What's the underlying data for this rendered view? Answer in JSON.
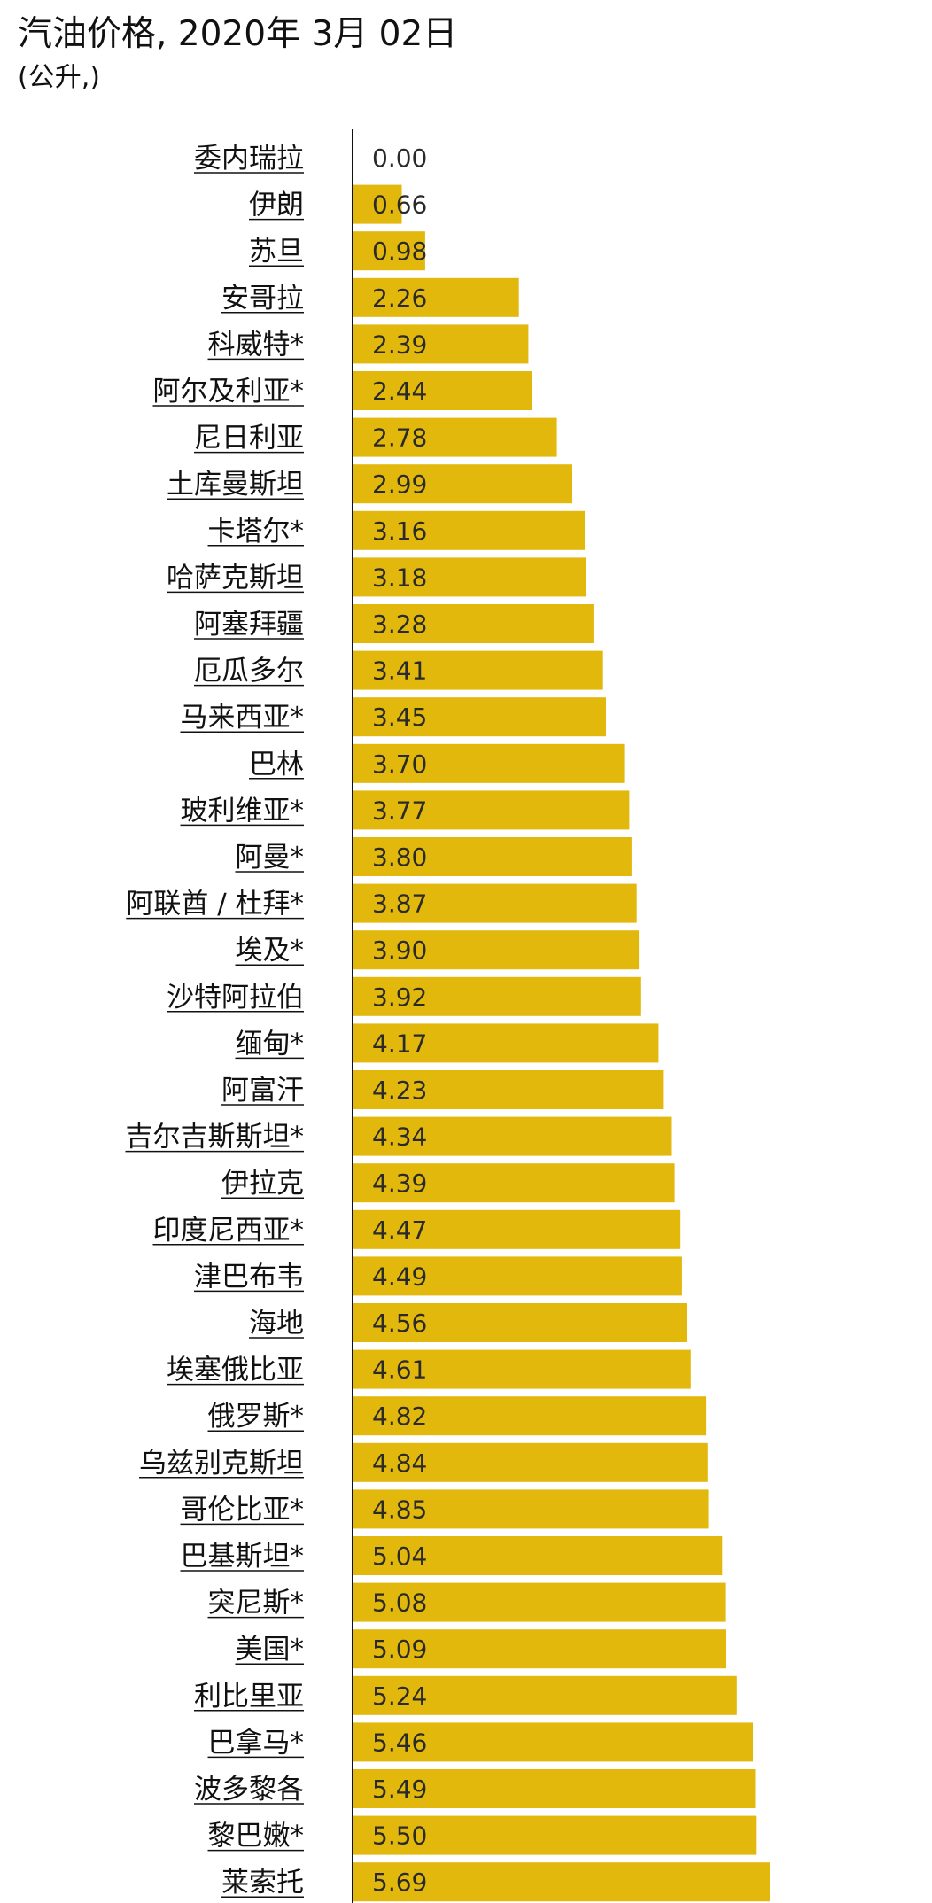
{
  "chart_data": {
    "type": "bar",
    "orientation": "horizontal",
    "title": "汽油价格, 2020年 3月 02日",
    "subtitle": "(公升,)",
    "bar_color": "#e2b80c",
    "axis_color": "#111111",
    "categories": [
      "委内瑞拉",
      "伊朗",
      "苏旦",
      "安哥拉",
      "科威特*",
      "阿尔及利亚*",
      "尼日利亚",
      "土库曼斯坦",
      "卡塔尔*",
      "哈萨克斯坦",
      "阿塞拜疆",
      "厄瓜多尔",
      "马来西亚*",
      "巴林",
      "玻利维亚*",
      "阿曼*",
      "阿联酋 / 杜拜*",
      "埃及*",
      "沙特阿拉伯",
      "缅甸*",
      "阿富汗",
      "吉尔吉斯斯坦*",
      "伊拉克",
      "印度尼西亚*",
      "津巴布韦",
      "海地",
      "埃塞俄比亚",
      "俄罗斯*",
      "乌兹别克斯坦",
      "哥伦比亚*",
      "巴基斯坦*",
      "突尼斯*",
      "美国*",
      "利比里亚",
      "巴拿马*",
      "波多黎各",
      "黎巴嫩*",
      "莱索托"
    ],
    "values": [
      0.0,
      0.66,
      0.98,
      2.26,
      2.39,
      2.44,
      2.78,
      2.99,
      3.16,
      3.18,
      3.28,
      3.41,
      3.45,
      3.7,
      3.77,
      3.8,
      3.87,
      3.9,
      3.92,
      4.17,
      4.23,
      4.34,
      4.39,
      4.47,
      4.49,
      4.56,
      4.61,
      4.82,
      4.84,
      4.85,
      5.04,
      5.08,
      5.09,
      5.24,
      5.46,
      5.49,
      5.5,
      5.69
    ],
    "value_labels": [
      "0.00",
      "0.66",
      "0.98",
      "2.26",
      "2.39",
      "2.44",
      "2.78",
      "2.99",
      "3.16",
      "3.18",
      "3.28",
      "3.41",
      "3.45",
      "3.70",
      "3.77",
      "3.80",
      "3.87",
      "3.90",
      "3.92",
      "4.17",
      "4.23",
      "4.34",
      "4.39",
      "4.47",
      "4.49",
      "4.56",
      "4.61",
      "4.82",
      "4.84",
      "4.85",
      "5.04",
      "5.08",
      "5.09",
      "5.24",
      "5.46",
      "5.49",
      "5.50",
      "5.69"
    ],
    "xlim": [
      0,
      5.69
    ]
  }
}
